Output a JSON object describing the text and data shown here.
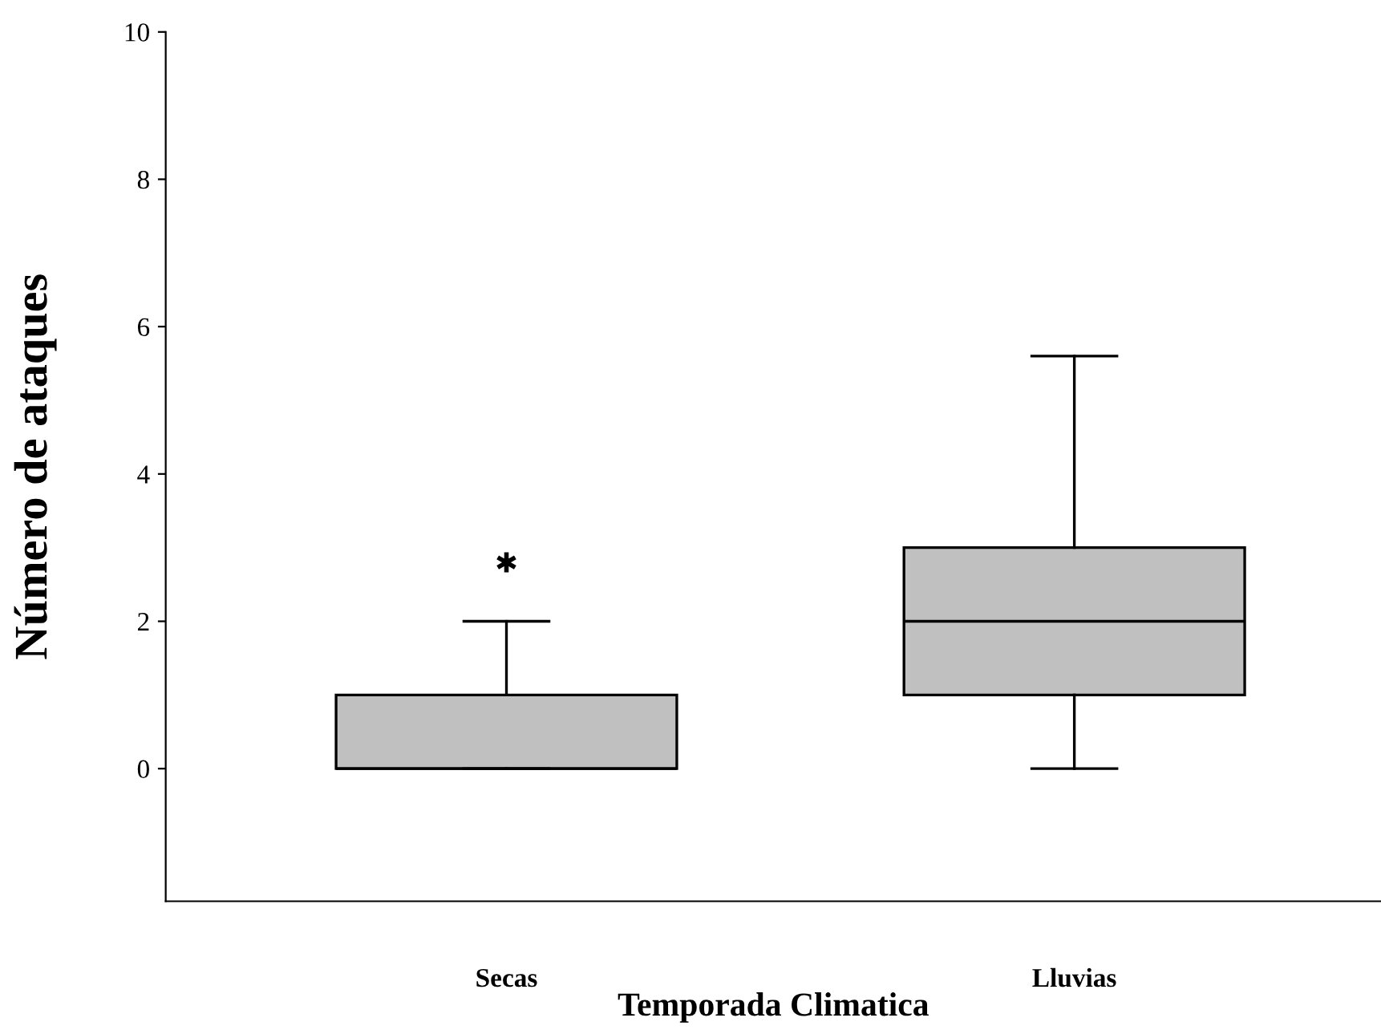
{
  "chart_data": {
    "type": "box",
    "xlabel": "Temporada Climatica",
    "ylabel": "Número de ataques",
    "categories": [
      "Secas",
      "Lluvias"
    ],
    "boxes": [
      {
        "low": 0,
        "q1": 0,
        "median": 0,
        "q3": 1,
        "high": 2,
        "outliers": [
          2.8
        ]
      },
      {
        "low": 0,
        "q1": 1,
        "median": 2,
        "q3": 3,
        "high": 5.6
      }
    ],
    "color": "#c0c0c0",
    "ylim": [
      -1.8,
      10
    ],
    "yticks": [
      0,
      2,
      4,
      6,
      8,
      10
    ],
    "grid": false,
    "legend": false
  }
}
